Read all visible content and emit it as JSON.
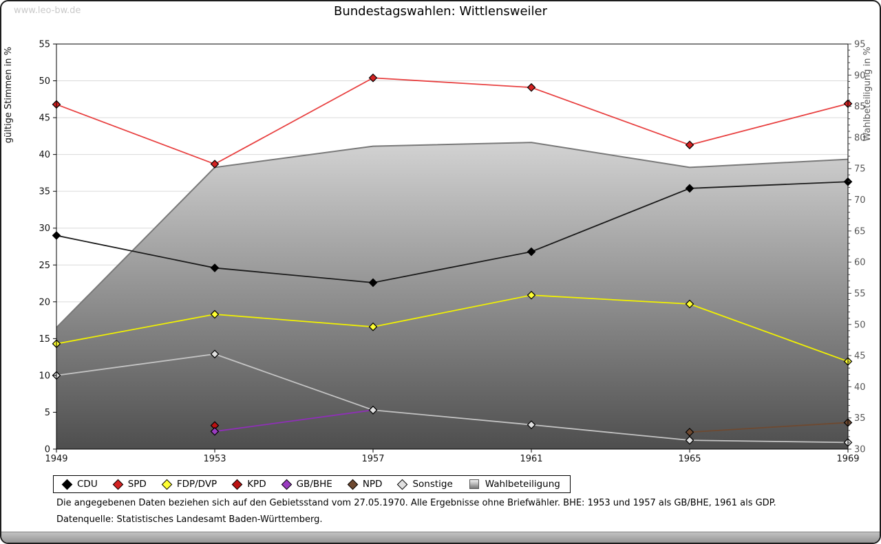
{
  "watermark": "www.leo-bw.de",
  "header": {
    "title": "Bundestagswahlen: Wittlensweiler"
  },
  "footnotes": {
    "line1": "Die angegebenen Daten beziehen sich auf den Gebietsstand vom 27.05.1970. Alle Ergebnisse ohne Briefwähler. BHE: 1953 und 1957 als GB/BHE, 1961 als GDP.",
    "line2": "Datenquelle: Statistisches Landesamt Baden-Württemberg."
  },
  "chart_data": {
    "type": "line",
    "title": "Bundestagswahlen: Wittlensweiler",
    "x": [
      1949,
      1953,
      1957,
      1961,
      1965,
      1969
    ],
    "xlim": [
      1949,
      1969
    ],
    "ylabel_left": "gültige Stimmen in %",
    "ylabel_right": "Wahlbeteiligung in %",
    "ylim_left": [
      0,
      55
    ],
    "ylim_right": [
      30,
      95
    ],
    "grid": true,
    "legend_position": "bottom",
    "turnout_gradient": [
      "#fdfdfd",
      "#4e4e4e"
    ],
    "series": [
      {
        "name": "CDU",
        "axis": "left",
        "color": "#000000",
        "line_color": "#1a1a1a",
        "points": [
          [
            1949,
            29.0
          ],
          [
            1953,
            24.6
          ],
          [
            1957,
            22.6
          ],
          [
            1961,
            26.8
          ],
          [
            1965,
            35.4
          ],
          [
            1969,
            36.3
          ]
        ]
      },
      {
        "name": "SPD",
        "axis": "left",
        "color": "#d42222",
        "line_color": "#e84040",
        "points": [
          [
            1949,
            46.8
          ],
          [
            1953,
            38.7
          ],
          [
            1957,
            50.4
          ],
          [
            1961,
            49.1
          ],
          [
            1965,
            41.3
          ],
          [
            1969,
            46.9
          ]
        ]
      },
      {
        "name": "FDP/DVP",
        "axis": "left",
        "color": "#ffff33",
        "line_color": "#f2f200",
        "points": [
          [
            1949,
            14.3
          ],
          [
            1953,
            18.3
          ],
          [
            1957,
            16.6
          ],
          [
            1961,
            20.9
          ],
          [
            1965,
            19.7
          ],
          [
            1969,
            11.9
          ]
        ]
      },
      {
        "name": "KPD",
        "axis": "left",
        "color": "#bb1111",
        "line_color": "#bb1111",
        "points": [
          [
            1953,
            3.2
          ]
        ]
      },
      {
        "name": "GB/BHE",
        "axis": "left",
        "color": "#9a3cc0",
        "line_color": "#8f2fb8",
        "points": [
          [
            1953,
            2.4
          ],
          [
            1957,
            5.3
          ]
        ]
      },
      {
        "name": "NPD",
        "axis": "left",
        "color": "#6e4930",
        "line_color": "#6e4930",
        "points": [
          [
            1965,
            2.3
          ],
          [
            1969,
            3.6
          ]
        ]
      },
      {
        "name": "Sonstige",
        "axis": "left",
        "color": "#e0e0e0",
        "line_color": "#c4c4c4",
        "points": [
          [
            1949,
            10.0
          ],
          [
            1953,
            12.9
          ],
          [
            1957,
            5.3
          ],
          [
            1961,
            3.3
          ],
          [
            1965,
            1.2
          ],
          [
            1969,
            0.9
          ]
        ]
      },
      {
        "name": "Wahlbeteiligung",
        "axis": "right",
        "type": "area",
        "color": "#bbbbbb",
        "line_color": "#787878",
        "points": [
          [
            1949,
            49.5
          ],
          [
            1953,
            75.2
          ],
          [
            1957,
            78.6
          ],
          [
            1961,
            79.2
          ],
          [
            1965,
            75.2
          ],
          [
            1969,
            76.5
          ]
        ]
      }
    ]
  }
}
